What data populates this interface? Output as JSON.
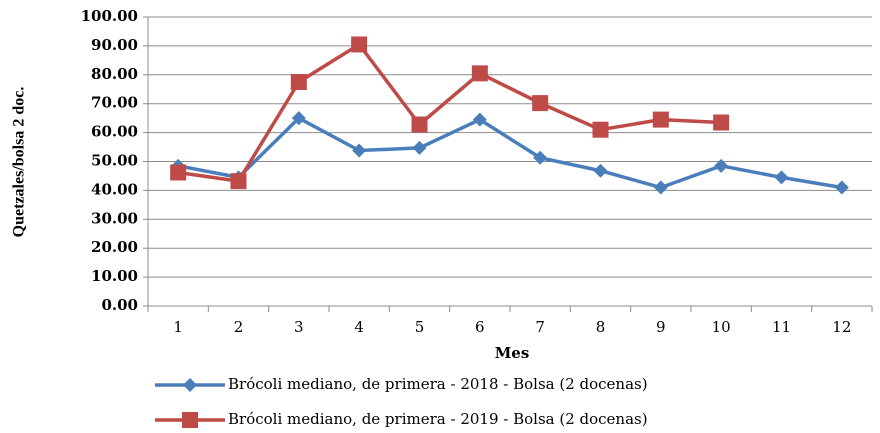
{
  "chart_data": {
    "type": "line",
    "x_label": "Mes",
    "y_label": "Quetzales/bolsa 2 doc.",
    "categories": [
      "1",
      "2",
      "3",
      "4",
      "5",
      "6",
      "7",
      "8",
      "9",
      "10",
      "11",
      "12"
    ],
    "series": [
      {
        "name": "Brócoli mediano, de primera - 2018 - Bolsa (2 docenas)",
        "color": "#4a7ebb",
        "marker": "diamond",
        "values": [
          48.5,
          44.5,
          65,
          53.8,
          54.7,
          64.5,
          51.3,
          46.8,
          41,
          48.5,
          44.5,
          41
        ]
      },
      {
        "name": "Brócoli mediano, de primera - 2019 - Bolsa (2 docenas)",
        "color": "#be4b48",
        "marker": "square",
        "values": [
          46.2,
          43.2,
          77.5,
          90.5,
          62.8,
          80.5,
          70.2,
          61,
          64.5,
          63.5,
          null,
          null
        ]
      }
    ],
    "ylim": [
      0,
      100
    ],
    "yticks": [
      {
        "value": 0,
        "label": "0.00"
      },
      {
        "value": 10,
        "label": "10.00"
      },
      {
        "value": 20,
        "label": "20.00"
      },
      {
        "value": 30,
        "label": "30.00"
      },
      {
        "value": 40,
        "label": "40.00"
      },
      {
        "value": 50,
        "label": "50.00"
      },
      {
        "value": 60,
        "label": "60.00"
      },
      {
        "value": 70,
        "label": "70.00"
      },
      {
        "value": 80,
        "label": "80.00"
      },
      {
        "value": 90,
        "label": "90.00"
      },
      {
        "value": 100,
        "label": "100.00"
      }
    ],
    "grid": true,
    "legend": "bottom"
  }
}
